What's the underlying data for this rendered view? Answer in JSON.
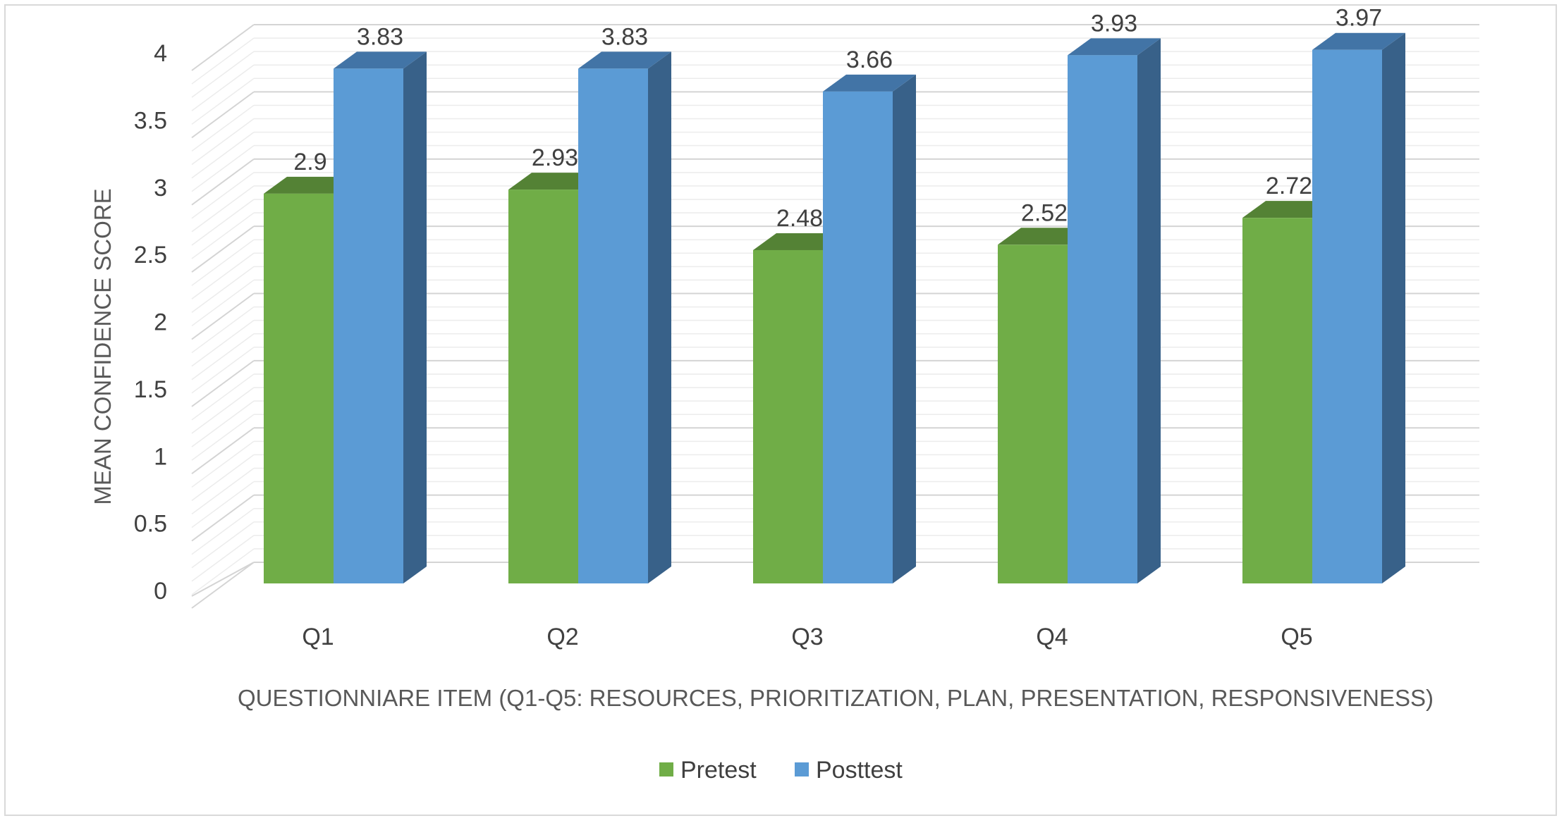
{
  "chart_data": {
    "type": "bar",
    "style": "3d-clustered-column",
    "categories": [
      "Q1",
      "Q2",
      "Q3",
      "Q4",
      "Q5"
    ],
    "series": [
      {
        "name": "Pretest",
        "values": [
          2.9,
          2.93,
          2.48,
          2.52,
          2.72
        ],
        "color": "#70ad47",
        "top_color": "#548235"
      },
      {
        "name": "Posttest",
        "values": [
          3.83,
          3.83,
          3.66,
          3.93,
          3.97
        ],
        "color": "#5b9bd5",
        "top_color": "#4274a6",
        "side_color": "#386189"
      }
    ],
    "data_labels": {
      "Pretest": [
        "2.9",
        "2.93",
        "2.48",
        "2.52",
        "2.72"
      ],
      "Posttest": [
        "3.83",
        "3.83",
        "3.66",
        "3.93",
        "3.97"
      ]
    },
    "xlabel": "QUESTIONNIARE ITEM (Q1-Q5: RESOURCES, PRIORITIZATION, PLAN, PRESENTATION, RESPONSIVENESS)",
    "ylabel": "MEAN CONFIDENCE SCORE",
    "ylim": [
      0,
      4
    ],
    "yticks": [
      "0",
      "0.5",
      "1",
      "1.5",
      "2",
      "2.5",
      "3",
      "3.5",
      "4"
    ],
    "grid": true,
    "legend_position": "bottom"
  }
}
